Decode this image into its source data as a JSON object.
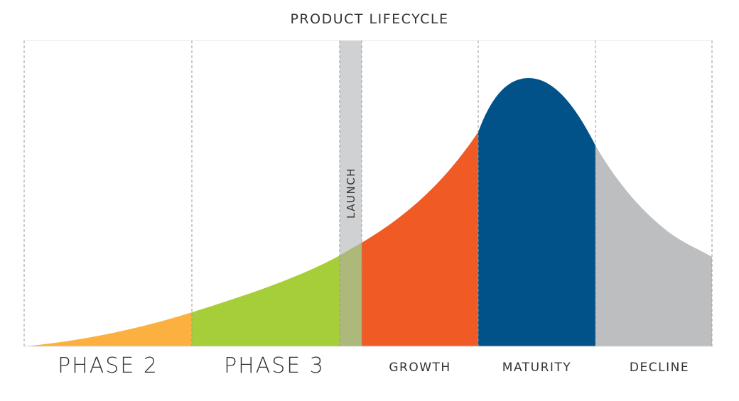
{
  "title": "PRODUCT LIFECYCLE",
  "launch_label": "LAUNCH",
  "stages": [
    {
      "label": "PHASE 2",
      "color": "#fbb040"
    },
    {
      "label": "PHASE 3",
      "color": "#a6ce39"
    },
    {
      "label": "GROWTH",
      "color": "#f05a24"
    },
    {
      "label": "MATURITY",
      "color": "#005288"
    },
    {
      "label": "DECLINE",
      "color": "#bcbec0"
    }
  ],
  "launch_color": "#c8c9cb"
}
